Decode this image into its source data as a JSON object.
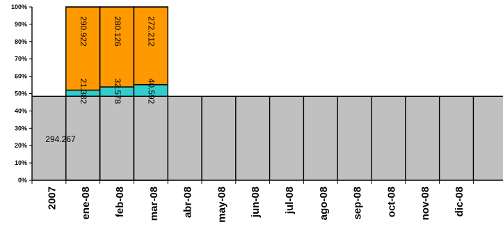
{
  "chart_data": {
    "type": "bar",
    "stacked": true,
    "categories": [
      "2007",
      "ene-08",
      "feb-08",
      "mar-08",
      "abr-08",
      "may-08",
      "jun-08",
      "jul-08",
      "ago-08",
      "sep-08",
      "oct-08",
      "nov-08",
      "dic-08"
    ],
    "base_value": 294.267,
    "base_label": "294.267",
    "base_color": "#c0c0c0",
    "ylim_percent": [
      0,
      100
    ],
    "yticks": [
      "0%",
      "10%",
      "20%",
      "30%",
      "40%",
      "50%",
      "60%",
      "70%",
      "80%",
      "90%",
      "100%"
    ],
    "grid": false,
    "legend": "none",
    "series": [
      {
        "color": "#33cccc",
        "values": [
          null,
          21.382,
          32.578,
          40.592,
          null,
          null,
          null,
          null,
          null,
          null,
          null,
          null,
          null
        ],
        "labels": [
          "",
          "21.382",
          "32.578",
          "40.592",
          "",
          "",
          "",
          "",
          "",
          "",
          "",
          "",
          ""
        ]
      },
      {
        "color": "#ff9900",
        "values": [
          null,
          290.922,
          280.126,
          272.212,
          null,
          null,
          null,
          null,
          null,
          null,
          null,
          null,
          null
        ],
        "labels": [
          "",
          "290.922",
          "280.126",
          "272.212",
          "",
          "",
          "",
          "",
          "",
          "",
          "",
          "",
          ""
        ]
      }
    ]
  }
}
